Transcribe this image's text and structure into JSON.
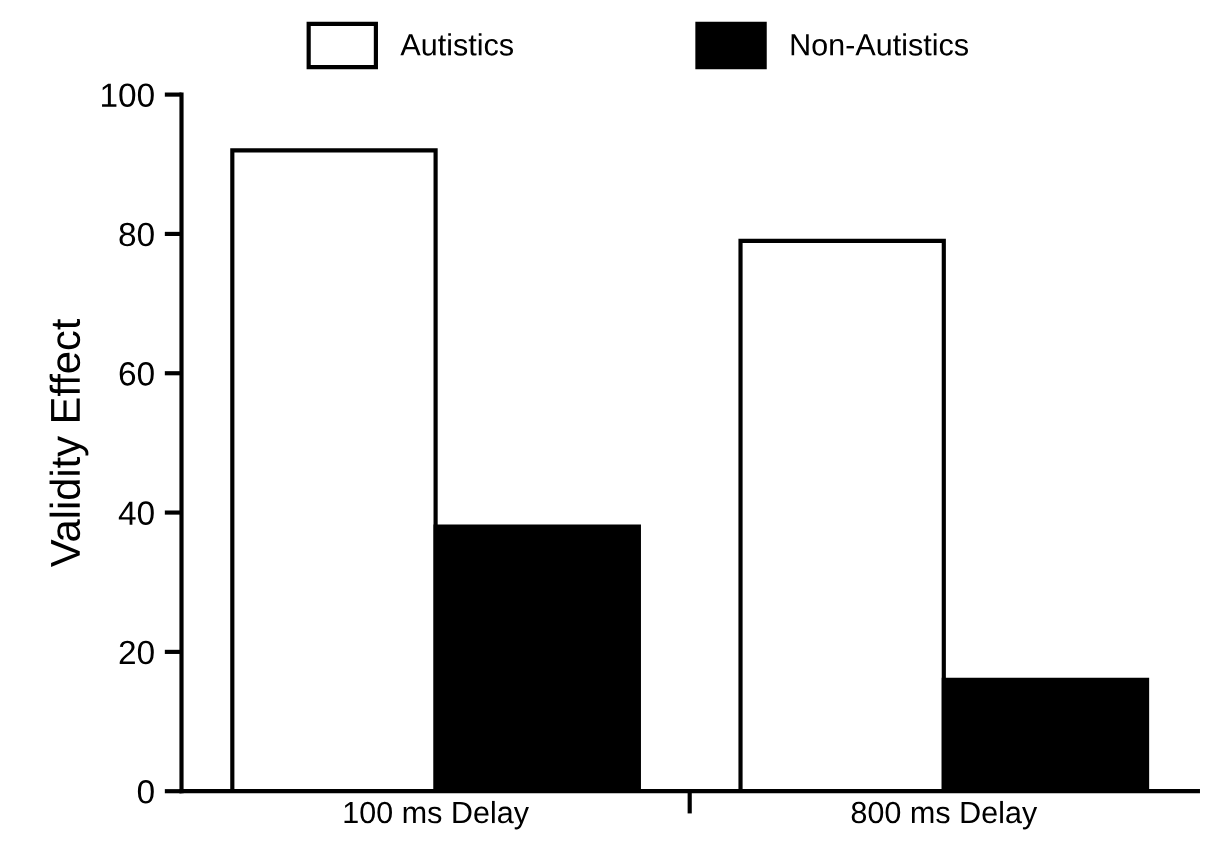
{
  "chart_data": {
    "type": "bar",
    "ylabel": "Validity Effect",
    "categories": [
      "100 ms Delay",
      "800 ms Delay"
    ],
    "series": [
      {
        "name": "Autistics",
        "color": "#ffffff",
        "values": [
          92,
          79
        ]
      },
      {
        "name": "Non-Autistics",
        "color": "#000000",
        "values": [
          38,
          16
        ]
      }
    ],
    "ylim": [
      0,
      100
    ],
    "yticks": [
      0,
      20,
      40,
      60,
      80,
      100
    ],
    "grid": false,
    "legend": "top"
  }
}
